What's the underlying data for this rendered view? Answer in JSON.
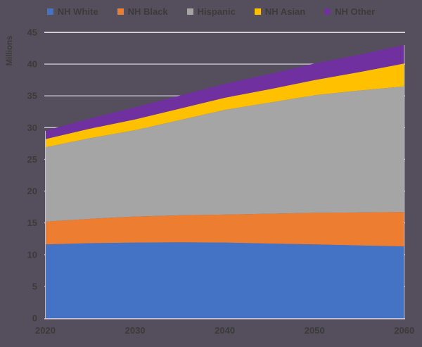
{
  "background_color": "#554E5C",
  "text_color": "#3C3B3A",
  "gridline_color": "#C9C5CE",
  "top_gridline_color": "#CFCCD4",
  "edge_line_color": "#D8D2E0",
  "chart_data": {
    "type": "area",
    "stacked": true,
    "title": "",
    "ylabel": "Millions",
    "xlabel": "",
    "ylim": [
      0,
      45
    ],
    "ytick_step": 5,
    "yticks": [
      0,
      5,
      10,
      15,
      20,
      25,
      30,
      35,
      40,
      45
    ],
    "xticks": [
      2020,
      2030,
      2040,
      2050,
      2060
    ],
    "legend_position": "top",
    "grid": true,
    "x": [
      2020,
      2025,
      2030,
      2035,
      2040,
      2045,
      2050,
      2055,
      2060
    ],
    "series": [
      {
        "name": "NH White",
        "color": "#4472C4",
        "values": [
          11.6,
          11.8,
          11.9,
          11.95,
          11.9,
          11.75,
          11.6,
          11.45,
          11.3
        ]
      },
      {
        "name": "NH Black",
        "color": "#ED7D31",
        "values": [
          3.6,
          3.85,
          4.1,
          4.25,
          4.4,
          4.7,
          5.0,
          5.2,
          5.4
        ]
      },
      {
        "name": "Hispanic",
        "color": "#A5A5A5",
        "values": [
          11.7,
          12.7,
          13.6,
          15.0,
          16.5,
          17.5,
          18.5,
          19.2,
          19.8
        ]
      },
      {
        "name": "NH Asian",
        "color": "#FFC000",
        "values": [
          1.3,
          1.5,
          1.7,
          1.8,
          1.9,
          2.1,
          2.4,
          2.9,
          3.6
        ]
      },
      {
        "name": "NH Other",
        "color": "#7030A0",
        "values": [
          1.3,
          1.6,
          1.9,
          2.05,
          2.2,
          2.4,
          2.6,
          2.75,
          2.9
        ]
      }
    ],
    "totals_by_decade": {
      "2020": 29.5,
      "2030": 33.2,
      "2040": 36.9,
      "2050": 40.1,
      "2060": 43.0
    }
  }
}
